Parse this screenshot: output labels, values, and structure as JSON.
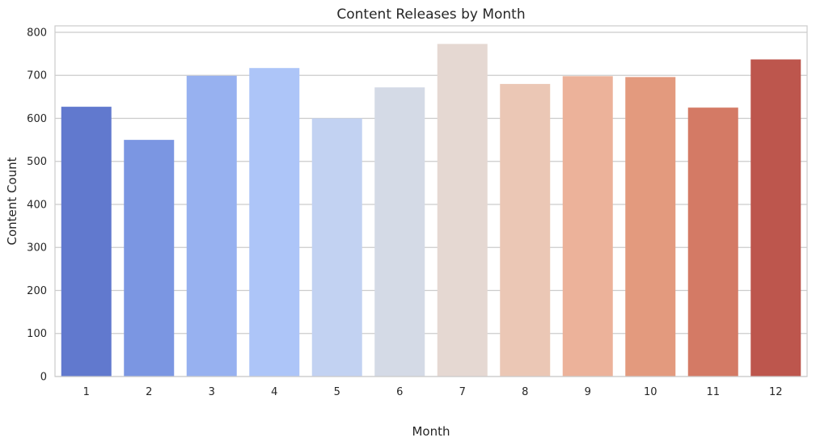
{
  "chart_data": {
    "type": "bar",
    "title": "Content Releases by Month",
    "xlabel": "Month",
    "ylabel": "Content Count",
    "categories": [
      "1",
      "2",
      "3",
      "4",
      "5",
      "6",
      "7",
      "8",
      "9",
      "10",
      "11",
      "12"
    ],
    "values": [
      627,
      550,
      699,
      717,
      600,
      672,
      773,
      680,
      698,
      696,
      625,
      737
    ],
    "colors": [
      "#6179ce",
      "#7b96e2",
      "#97b1f0",
      "#adc5f8",
      "#c2d2f2",
      "#d4dae6",
      "#e5d8d2",
      "#ebc7b5",
      "#ecb29a",
      "#e39a7e",
      "#d47a65",
      "#bd564d"
    ],
    "ylim": [
      0,
      815
    ],
    "yticks": [
      0,
      100,
      200,
      300,
      400,
      500,
      600,
      700,
      800
    ],
    "grid": "horizontal",
    "legend": "none"
  }
}
